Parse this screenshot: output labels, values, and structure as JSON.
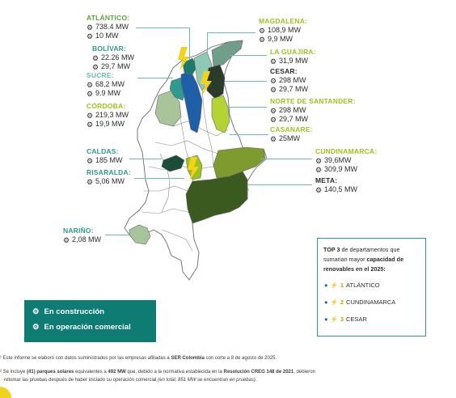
{
  "colors": {
    "teal_dark": "#0f7c74",
    "teal": "#2f9a8f",
    "green_label": "#5aa83a",
    "lime_label": "#9cc21c",
    "olive_dark": "#3a5a1f",
    "olive": "#7f9a2e",
    "sage": "#a9c39a",
    "blue": "#1f5fa8",
    "yellow": "#f2d21b"
  },
  "departments": [
    {
      "name": "ATLÁNTICO:",
      "construction": "738.4 MW",
      "operation": "10 MW"
    },
    {
      "name": "BOLÍVAR:",
      "construction": "22.26 MW",
      "operation": "29,7 MW"
    },
    {
      "name": "SUCRE:",
      "construction": "68,2 MW",
      "operation": "9.9 MW"
    },
    {
      "name": "CÓRDOBA:",
      "construction": "219,3 MW",
      "operation": "19,9 MW"
    },
    {
      "name": "MAGDALENA:",
      "construction": "108,9 MW",
      "operation": "9,9 MW"
    },
    {
      "name": "LA GUAJIRA:",
      "construction": "31,9 MW",
      "operation": ""
    },
    {
      "name": "CESAR:",
      "construction": "298  MW",
      "operation": "29,7 MW"
    },
    {
      "name": "NORTE DE SANTANDER:",
      "construction": "298  MW",
      "operation": "29,7 MW"
    },
    {
      "name": "CASANARE:",
      "construction": "25MW",
      "operation": ""
    },
    {
      "name": "CUNDINAMARCA:",
      "construction": "39,6MW",
      "operation": "309,9 MW"
    },
    {
      "name": "META:",
      "construction": "140,5 MW",
      "operation": ""
    },
    {
      "name": "CALDAS:",
      "construction": "185 MW",
      "operation": ""
    },
    {
      "name": "RISARALDA:",
      "construction": "5,06 MW",
      "operation": ""
    },
    {
      "name": "NARIÑO:",
      "construction": "2,08 MW",
      "operation": ""
    }
  ],
  "legend": {
    "construction": "En construcción",
    "operation": "En operación comercial",
    "construction_icon": "hand-gear-icon",
    "operation_icon": "gear-icon"
  },
  "top3": {
    "title_pre": "TOP 3",
    "title_mid": " de departamentos que sumarian mayor ",
    "title_bold": "capacidad de renovables en el 2025:",
    "items": [
      {
        "rank": "1",
        "name": "ATLÁNTICO"
      },
      {
        "rank": "2",
        "name": "CUNDINAMARCA"
      },
      {
        "rank": "3",
        "name": "CESAR"
      }
    ]
  },
  "notes": {
    "note1_a": "¹ Este informe se elaboró con datos suministrados por las empresas afiliadas a ",
    "note1_b": "SER Colombia",
    "note1_c": " con corte a 8 de agosto de 2025.",
    "note2_a": "² Se incluye ",
    "note2_b": "(41) parques solares",
    "note2_c": " equivalentes a ",
    "note2_d": "492 MW",
    "note2_e": " que, debido a la normativa establecida en la ",
    "note2_f": "Resolución CREG 148 de 2021",
    "note2_g": ", debieron",
    "note3_a": "retomar las pruebas después de haber iniciado su operación comercial ",
    "note3_b": "(en total, 851 MW se encuentran en pruebas)."
  }
}
